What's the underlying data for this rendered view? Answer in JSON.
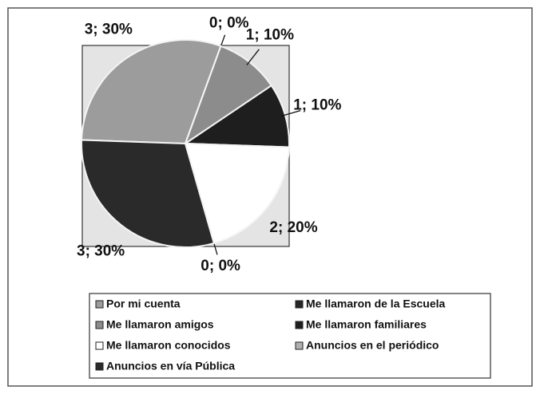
{
  "chart_data": {
    "type": "pie",
    "categories": [
      "Por mi cuenta",
      "Me llamaron de la Escuela",
      "Me llamaron amigos",
      "Me llamaron familiares",
      "Me llamaron conocidos",
      "Anuncios en el periódico",
      "Anuncios en vía Pública"
    ],
    "values": [
      3,
      0,
      1,
      1,
      2,
      0,
      3
    ],
    "value_labels": [
      "3; 30%",
      "0; 0%",
      "1; 10%",
      "1; 10%",
      "2; 20%",
      "0; 0%",
      "3; 30%"
    ],
    "colors": [
      "#9c9c9c",
      "#262626",
      "#8c8c8c",
      "#1e1e1e",
      "#ffffff",
      "#b0b0b0",
      "#2a2a2a"
    ],
    "legend": "bottom"
  }
}
